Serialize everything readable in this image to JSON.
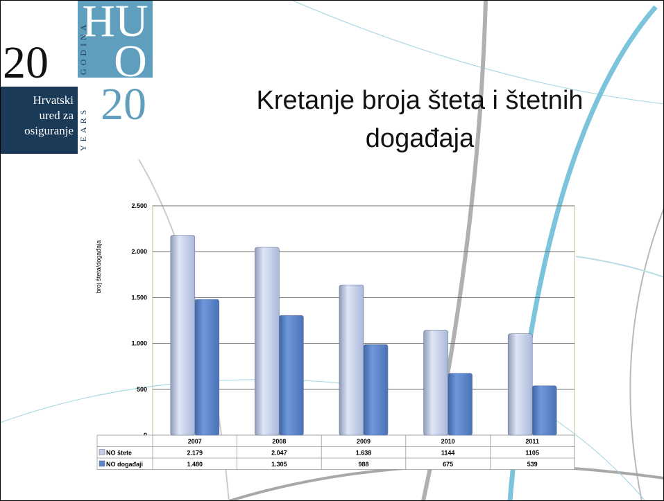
{
  "logo": {
    "number": "20",
    "mark_top": "HU",
    "mark_middle": "O",
    "mark_bottom": "20",
    "vertical_top": "GODINA",
    "vertical_bottom": "YEARS",
    "lines": [
      "Hrvatski",
      "ured za",
      "osiguranje"
    ]
  },
  "chart_data": {
    "type": "bar",
    "title": [
      "Kretanje broja šteta i štetnih",
      "događaja"
    ],
    "y_label": "broj šteta/događaja",
    "categories": [
      "2007",
      "2008",
      "2009",
      "2010",
      "2011"
    ],
    "series": [
      {
        "name": "NO štete",
        "color": "#c3cfea",
        "values": [
          2179,
          2047,
          1638,
          1144,
          1105
        ],
        "value_labels": [
          "2.179",
          "2.047",
          "1.638",
          "1144",
          "1105"
        ]
      },
      {
        "name": "NO događaji",
        "color": "#5a85cc",
        "values": [
          1480,
          1305,
          988,
          675,
          539
        ],
        "value_labels": [
          "1.480",
          "1.305",
          "988",
          "675",
          "539"
        ]
      }
    ],
    "ylim": [
      0,
      2500
    ],
    "yticks": [
      0,
      500,
      {
        "value": 1000,
        "label": "1.000"
      },
      {
        "value": 1500,
        "label": "1.500"
      },
      {
        "value": 2000,
        "label": "2.000"
      },
      {
        "value": 2500,
        "label": "2.500"
      }
    ],
    "grid": true
  }
}
